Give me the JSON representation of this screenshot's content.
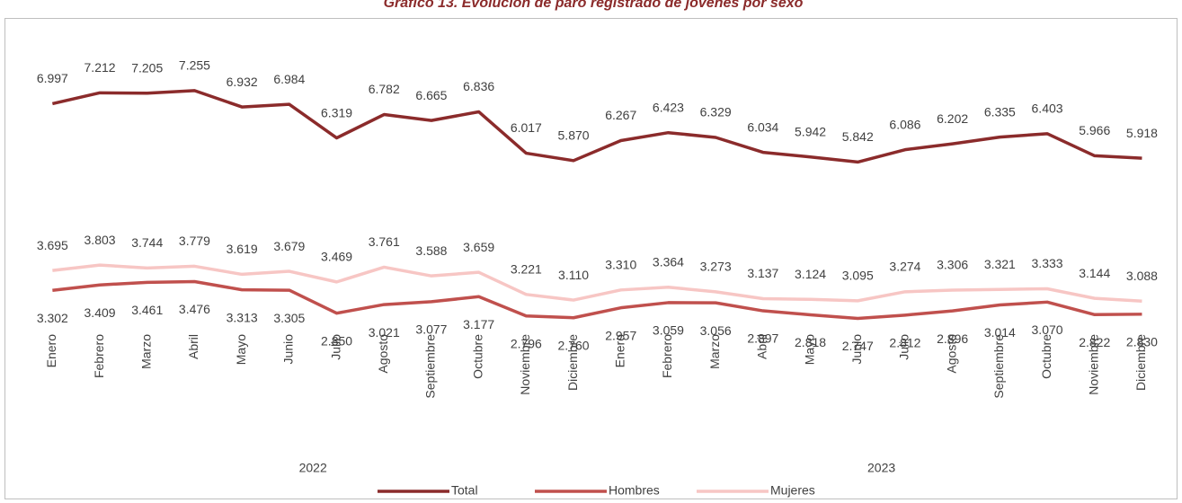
{
  "chart_data": {
    "type": "line",
    "title": "Gráfico 13. Evolución de paro registrado de jóvenes por sexo",
    "categories": [
      "Enero",
      "Febrero",
      "Marzo",
      "Abril",
      "Mayo",
      "Junio",
      "Julio",
      "Agosto",
      "Septiembre",
      "Octubre",
      "Noviembre",
      "Diciembre",
      "Enero",
      "Febrero",
      "Marzo",
      "Abril",
      "Mayo",
      "Junio",
      "Julio",
      "Agosto",
      "Septiembre",
      "Octubre",
      "Noviembre",
      "Diciembre"
    ],
    "x_groups": [
      {
        "label": "2022",
        "count": 12
      },
      {
        "label": "2023",
        "count": 12
      }
    ],
    "ylim": [
      0,
      8000
    ],
    "legend": "bottom",
    "series": [
      {
        "name": "Total",
        "color": "#8b2b2b",
        "labels": "above",
        "values": [
          6997,
          7212,
          7205,
          7255,
          6932,
          6984,
          6319,
          6782,
          6665,
          6836,
          6017,
          5870,
          6267,
          6423,
          6329,
          6034,
          5942,
          5842,
          6086,
          6202,
          6335,
          6403,
          5966,
          5918
        ],
        "value_labels": [
          "6.997",
          "7.212",
          "7.205",
          "7.255",
          "6.932",
          "6.984",
          "6.319",
          "6.782",
          "6.665",
          "6.836",
          "6.017",
          "5.870",
          "6.267",
          "6.423",
          "6.329",
          "6.034",
          "5.942",
          "5.842",
          "6.086",
          "6.202",
          "6.335",
          "6.403",
          "5.966",
          "5.918"
        ]
      },
      {
        "name": "Hombres",
        "color": "#c0504d",
        "labels": "below",
        "values": [
          3302,
          3409,
          3461,
          3476,
          3313,
          3305,
          2850,
          3021,
          3077,
          3177,
          2796,
          2760,
          2957,
          3059,
          3056,
          2897,
          2818,
          2747,
          2812,
          2896,
          3014,
          3070,
          2822,
          2830
        ],
        "value_labels": [
          "3.302",
          "3.409",
          "3.461",
          "3.476",
          "3.313",
          "3.305",
          "2.850",
          "3.021",
          "3.077",
          "3.177",
          "2.796",
          "2.760",
          "2.957",
          "3.059",
          "3.056",
          "2.897",
          "2.818",
          "2.747",
          "2.812",
          "2.896",
          "3.014",
          "3.070",
          "2.822",
          "2.830"
        ]
      },
      {
        "name": "Mujeres",
        "color": "#f7c6c4",
        "labels": "above",
        "values": [
          3695,
          3803,
          3744,
          3779,
          3619,
          3679,
          3469,
          3761,
          3588,
          3659,
          3221,
          3110,
          3310,
          3364,
          3273,
          3137,
          3124,
          3095,
          3274,
          3306,
          3321,
          3333,
          3144,
          3088
        ],
        "value_labels": [
          "3.695",
          "3.803",
          "3.744",
          "3.779",
          "3.619",
          "3.679",
          "3.469",
          "3.761",
          "3.588",
          "3.659",
          "3.221",
          "3.110",
          "3.310",
          "3.364",
          "3.273",
          "3.137",
          "3.124",
          "3.095",
          "3.274",
          "3.306",
          "3.321",
          "3.333",
          "3.144",
          "3.088"
        ]
      }
    ]
  }
}
